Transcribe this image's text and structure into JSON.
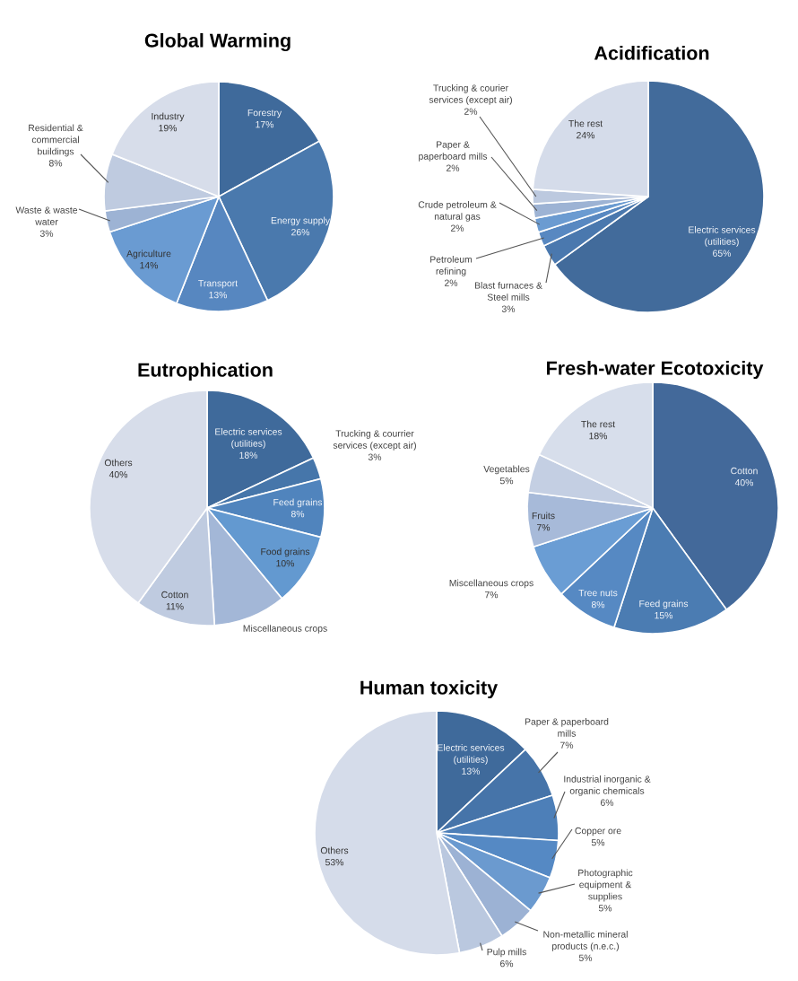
{
  "chart_data": [
    {
      "type": "pie",
      "title": "Global Warming",
      "categories": [
        "Forestry",
        "Energy supply",
        "Transport",
        "Agriculture",
        "Waste & waste\nwater",
        "Residential &\ncommercial\nbuildings",
        "Industry"
      ],
      "values": [
        17,
        26,
        13,
        14,
        3,
        8,
        19
      ],
      "value_labels": [
        "17%",
        "26%",
        "13%",
        "14%",
        "3%",
        "8%",
        "19%"
      ],
      "colors": [
        "#3f6a9b",
        "#4a79ad",
        "#5787c0",
        "#6a9bd2",
        "#9db3d4",
        "#bfcbe0",
        "#d7ddea"
      ]
    },
    {
      "type": "pie",
      "title": "Acidification",
      "categories": [
        "Electric services\n(utilities)",
        "Blast furnaces &\nSteel mills",
        "Petroleum\nrefining",
        "Crude petroleum &\nnatural gas",
        "Paper &\npaperboard mills",
        "Trucking & courier\nservices (except air)",
        "The rest"
      ],
      "values": [
        65,
        3,
        2,
        2,
        2,
        2,
        24
      ],
      "value_labels": [
        "65%",
        "3%",
        "2%",
        "2%",
        "2%",
        "2%",
        "24%"
      ],
      "colors": [
        "#426b9b",
        "#4a78ae",
        "#5888c1",
        "#6b9bd1",
        "#9db3d4",
        "#bcc9df",
        "#d5dcea"
      ]
    },
    {
      "type": "pie",
      "title": "Eutrophication",
      "categories": [
        "Electric services\n(utilities)",
        "Trucking & courrier\nservices (except air)",
        "Feed grains",
        "Food grains",
        "Miscellaneous crops",
        "Cotton",
        "Others"
      ],
      "values": [
        18,
        3,
        8,
        10,
        10,
        11,
        40
      ],
      "value_labels": [
        "18%",
        "3%",
        "8%",
        "10%",
        null,
        "11%",
        "40%"
      ],
      "colors": [
        "#3f6a9b",
        "#4676aa",
        "#5084bd",
        "#6399d0",
        "#a3b7d7",
        "#bfcbe0",
        "#d7ddea"
      ]
    },
    {
      "type": "pie",
      "title": "Fresh-water Ecotoxicity",
      "categories": [
        "Cotton",
        "Feed grains",
        "Tree nuts",
        "Miscellaneous crops",
        "Fruits",
        "Vegetables",
        "The rest"
      ],
      "values": [
        40,
        15,
        8,
        7,
        7,
        5,
        18
      ],
      "value_labels": [
        "40%",
        "15%",
        "8%",
        "7%",
        "7%",
        "5%",
        "18%"
      ],
      "colors": [
        "#43699a",
        "#4b7cb2",
        "#5689c3",
        "#6a9dd4",
        "#a7bad9",
        "#c4cfe3",
        "#d7deeb"
      ]
    },
    {
      "type": "pie",
      "title": "Human toxicity",
      "categories": [
        "Electric services\n(utilities)",
        "Paper & paperboard\nmills",
        "Industrial inorganic &\norganic chemicals",
        "Copper ore",
        "Photographic\nequipment &\nsupplies",
        "Non-metallic mineral\nproducts (n.e.c.)",
        "Pulp mills",
        "Others"
      ],
      "values": [
        13,
        7,
        6,
        5,
        5,
        5,
        6,
        53
      ],
      "value_labels": [
        "13%",
        "7%",
        "6%",
        "5%",
        "5%",
        "5%",
        "6%",
        "53%"
      ],
      "colors": [
        "#3f6a9b",
        "#4674a9",
        "#4d7fb8",
        "#5589c4",
        "#6b9acf",
        "#9cb2d4",
        "#bac8df",
        "#d5dcea"
      ]
    }
  ]
}
